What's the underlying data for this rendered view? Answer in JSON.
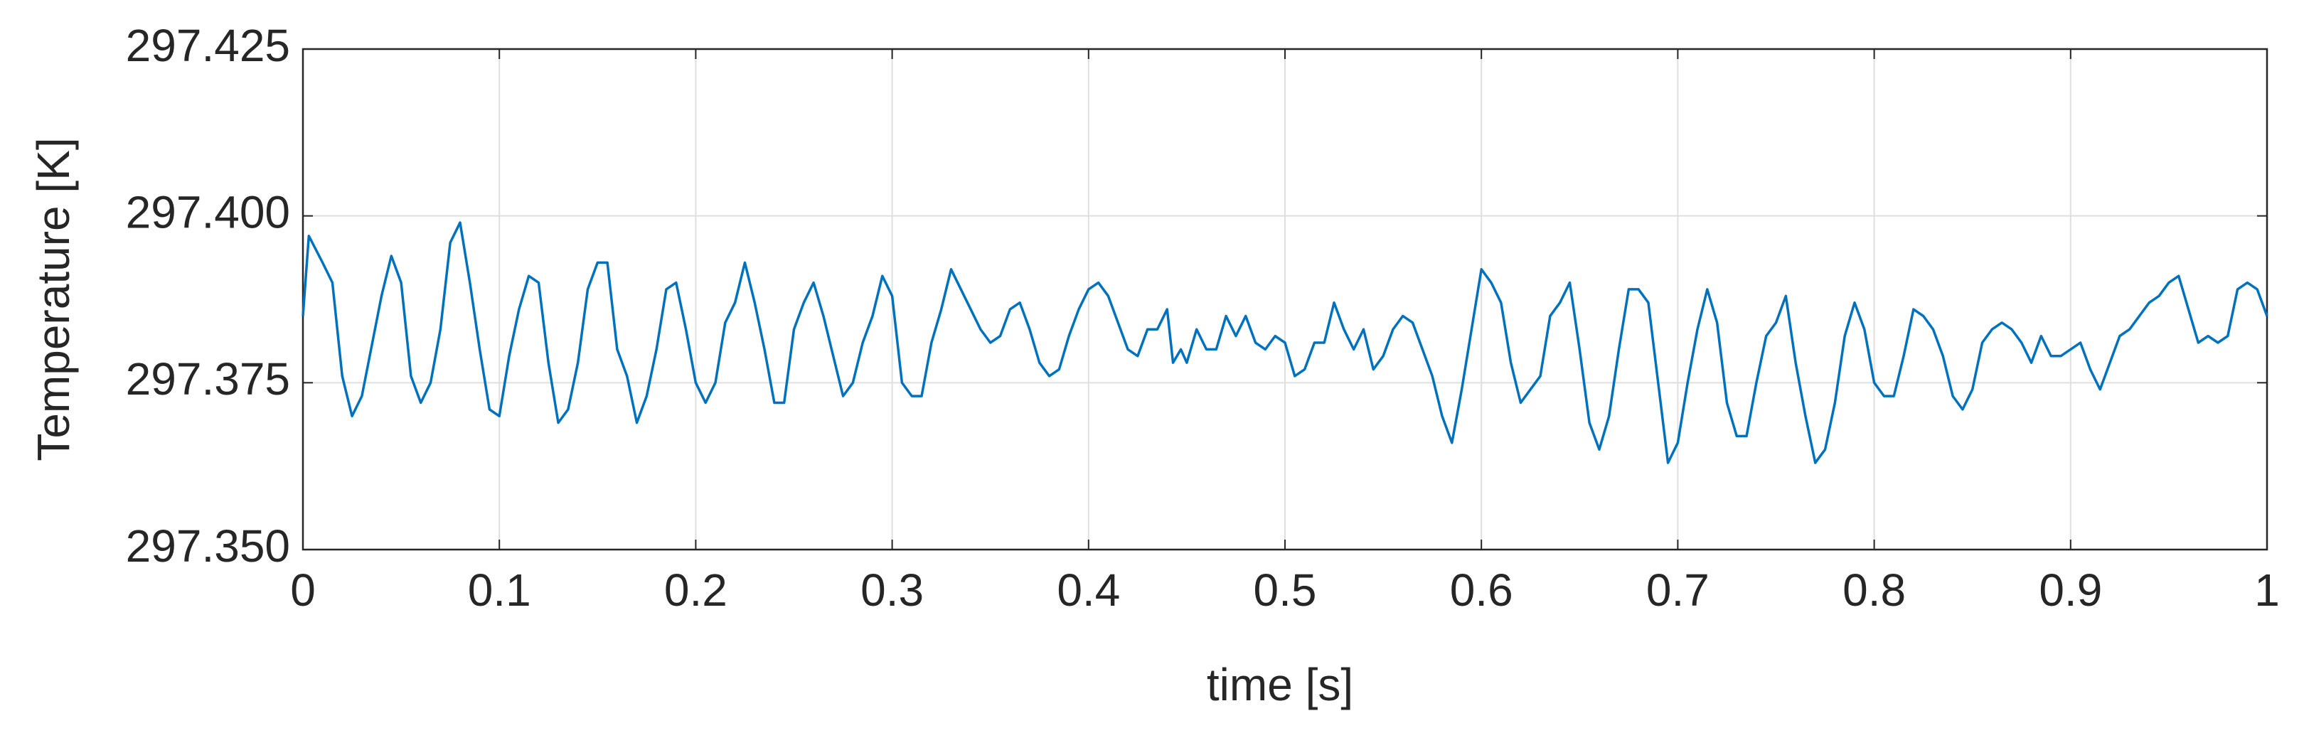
{
  "chart_data": {
    "type": "line",
    "xlabel": "time [s]",
    "ylabel": "Temperature [K]",
    "color": "#0072bd",
    "grid": true,
    "xlim": [
      0,
      1
    ],
    "ylim": [
      297.35,
      297.425
    ],
    "xticks": [
      0,
      0.1,
      0.2,
      0.3,
      0.4,
      0.5,
      0.6,
      0.7,
      0.8,
      0.9,
      1
    ],
    "yticks": [
      {
        "value": 297.35,
        "label": "297.350"
      },
      {
        "value": 297.375,
        "label": "297.375"
      },
      {
        "value": 297.4,
        "label": "297.400"
      },
      297.425
    ],
    "x": [
      0,
      0.003,
      0.01,
      0.015,
      0.02,
      0.025,
      0.03,
      0.04,
      0.045,
      0.05,
      0.055,
      0.06,
      0.065,
      0.07,
      0.075,
      0.08,
      0.085,
      0.09,
      0.095,
      0.1,
      0.105,
      0.11,
      0.115,
      0.12,
      0.125,
      0.13,
      0.135,
      0.14,
      0.145,
      0.15,
      0.155,
      0.16,
      0.165,
      0.17,
      0.175,
      0.18,
      0.185,
      0.19,
      0.195,
      0.2,
      0.205,
      0.21,
      0.215,
      0.22,
      0.225,
      0.23,
      0.235,
      0.24,
      0.245,
      0.25,
      0.255,
      0.26,
      0.265,
      0.27,
      0.275,
      0.28,
      0.285,
      0.29,
      0.295,
      0.3,
      0.305,
      0.31,
      0.315,
      0.32,
      0.325,
      0.33,
      0.335,
      0.34,
      0.345,
      0.35,
      0.355,
      0.36,
      0.365,
      0.37,
      0.375,
      0.38,
      0.385,
      0.39,
      0.395,
      0.4,
      0.405,
      0.41,
      0.415,
      0.42,
      0.425,
      0.43,
      0.435,
      0.44,
      0.443,
      0.447,
      0.45,
      0.455,
      0.46,
      0.465,
      0.47,
      0.475,
      0.48,
      0.485,
      0.49,
      0.495,
      0.5,
      0.505,
      0.51,
      0.515,
      0.52,
      0.525,
      0.53,
      0.535,
      0.54,
      0.545,
      0.55,
      0.555,
      0.56,
      0.565,
      0.57,
      0.575,
      0.58,
      0.585,
      0.59,
      0.595,
      0.6,
      0.605,
      0.61,
      0.615,
      0.62,
      0.625,
      0.63,
      0.635,
      0.64,
      0.645,
      0.65,
      0.655,
      0.66,
      0.665,
      0.67,
      0.675,
      0.68,
      0.685,
      0.69,
      0.695,
      0.7,
      0.705,
      0.71,
      0.715,
      0.72,
      0.725,
      0.73,
      0.735,
      0.74,
      0.745,
      0.75,
      0.755,
      0.76,
      0.765,
      0.77,
      0.775,
      0.78,
      0.785,
      0.79,
      0.795,
      0.8,
      0.805,
      0.81,
      0.815,
      0.82,
      0.825,
      0.83,
      0.835,
      0.84,
      0.845,
      0.85,
      0.855,
      0.86,
      0.865,
      0.87,
      0.875,
      0.88,
      0.885,
      0.89,
      0.895,
      0.9,
      0.905,
      0.91,
      0.915,
      0.92,
      0.925,
      0.93,
      0.935,
      0.94,
      0.945,
      0.95,
      0.955,
      0.96,
      0.965,
      0.97,
      0.975,
      0.98,
      0.985,
      0.99,
      0.995,
      1
    ],
    "values": [
      297.385,
      297.397,
      297.393,
      297.39,
      297.376,
      297.37,
      297.373,
      297.388,
      297.394,
      297.39,
      297.376,
      297.372,
      297.375,
      297.383,
      297.396,
      297.399,
      297.39,
      297.38,
      297.371,
      297.37,
      297.379,
      297.386,
      297.391,
      297.39,
      297.378,
      297.369,
      297.371,
      297.378,
      297.389,
      297.393,
      297.393,
      297.38,
      297.376,
      297.369,
      297.373,
      297.38,
      297.389,
      297.39,
      297.383,
      297.375,
      297.372,
      297.375,
      297.384,
      297.387,
      297.393,
      297.387,
      297.38,
      297.372,
      297.372,
      297.383,
      297.387,
      297.39,
      297.385,
      297.379,
      297.373,
      297.375,
      297.381,
      297.385,
      297.391,
      297.388,
      297.375,
      297.373,
      297.373,
      297.381,
      297.386,
      297.392,
      297.389,
      297.386,
      297.383,
      297.381,
      297.382,
      297.386,
      297.387,
      297.383,
      297.378,
      297.376,
      297.377,
      297.382,
      297.386,
      297.389,
      297.39,
      297.388,
      297.384,
      297.38,
      297.379,
      297.383,
      297.383,
      297.386,
      297.378,
      297.38,
      297.378,
      297.383,
      297.38,
      297.38,
      297.385,
      297.382,
      297.385,
      297.381,
      297.38,
      297.382,
      297.381,
      297.376,
      297.377,
      297.381,
      297.381,
      297.387,
      297.383,
      297.38,
      297.383,
      297.377,
      297.379,
      297.383,
      297.385,
      297.384,
      297.38,
      297.376,
      297.37,
      297.366,
      297.374,
      297.383,
      297.392,
      297.39,
      297.387,
      297.378,
      297.372,
      297.374,
      297.376,
      297.385,
      297.387,
      297.39,
      297.38,
      297.369,
      297.365,
      297.37,
      297.38,
      297.389,
      297.389,
      297.387,
      297.375,
      297.363,
      297.366,
      297.375,
      297.383,
      297.389,
      297.384,
      297.372,
      297.367,
      297.367,
      297.375,
      297.382,
      297.384,
      297.388,
      297.378,
      297.37,
      297.363,
      297.365,
      297.372,
      297.382,
      297.387,
      297.383,
      297.375,
      297.373,
      297.373,
      297.379,
      297.386,
      297.385,
      297.383,
      297.379,
      297.373,
      297.371,
      297.374,
      297.381,
      297.383,
      297.384,
      297.383,
      297.381,
      297.378,
      297.382,
      297.379,
      297.379,
      297.38,
      297.381,
      297.377,
      297.374,
      297.378,
      297.382,
      297.383,
      297.385,
      297.387,
      297.388,
      297.39,
      297.391,
      297.386,
      297.381,
      297.382,
      297.381,
      297.382,
      297.389,
      297.39,
      297.389,
      297.385
    ]
  }
}
